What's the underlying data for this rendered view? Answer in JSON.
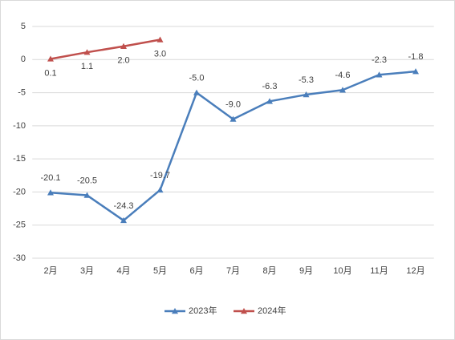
{
  "chart_data": {
    "type": "line",
    "categories": [
      "2月",
      "3月",
      "4月",
      "5月",
      "6月",
      "7月",
      "8月",
      "9月",
      "10月",
      "11月",
      "12月"
    ],
    "series": [
      {
        "name": "2023年",
        "color": "#4a7ebb",
        "values": [
          -20.1,
          -20.5,
          -24.3,
          -19.7,
          -5.0,
          -9.0,
          -6.3,
          -5.3,
          -4.6,
          -2.3,
          -1.8
        ],
        "value_labels": [
          "-20.1",
          "-20.5",
          "-24.3",
          "-19.7",
          "-5.0",
          "-9.0",
          "-6.3",
          "-5.3",
          "-4.6",
          "-2.3",
          "-1.8"
        ]
      },
      {
        "name": "2024年",
        "color": "#c0504d",
        "values": [
          0.1,
          1.1,
          2.0,
          3.0,
          null,
          null,
          null,
          null,
          null,
          null,
          null
        ],
        "value_labels": [
          "0.1",
          "1.1",
          "2.0",
          "3.0",
          null,
          null,
          null,
          null,
          null,
          null,
          null
        ]
      }
    ],
    "ylim": [
      -30,
      5
    ],
    "yticks": [
      -30,
      -25,
      -20,
      -15,
      -10,
      -5,
      0,
      5
    ],
    "grid": true,
    "legend": "bottom"
  }
}
